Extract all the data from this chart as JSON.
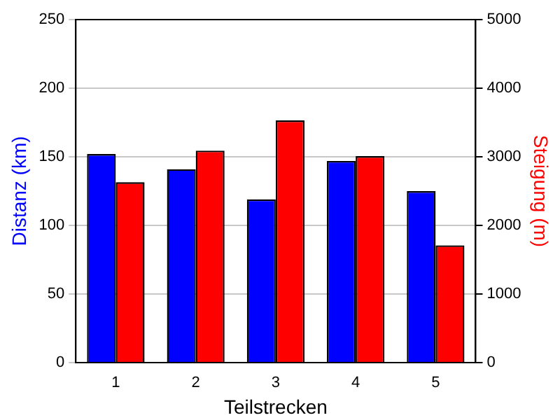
{
  "chart_data": {
    "type": "bar",
    "xlabel": "Teilstrecken",
    "ylabel": "Distanz (km)",
    "y2label": "Steigung (m)",
    "categories": [
      "1",
      "2",
      "3",
      "4",
      "5"
    ],
    "series": [
      {
        "color": "#0000ff",
        "values": [
          152,
          141,
          119,
          147,
          125
        ]
      },
      {
        "color": "#ff0000",
        "values": [
          2630,
          3090,
          3530,
          3010,
          1710
        ],
        "axis": "y2"
      }
    ],
    "ylim": [
      0,
      250
    ],
    "yticks": [
      0,
      50,
      100,
      150,
      200,
      250
    ],
    "y2lim": [
      0,
      5000
    ],
    "y2ticks": [
      0,
      1000,
      2000,
      3000,
      4000,
      5000
    ],
    "grid": "y",
    "legend": false
  }
}
